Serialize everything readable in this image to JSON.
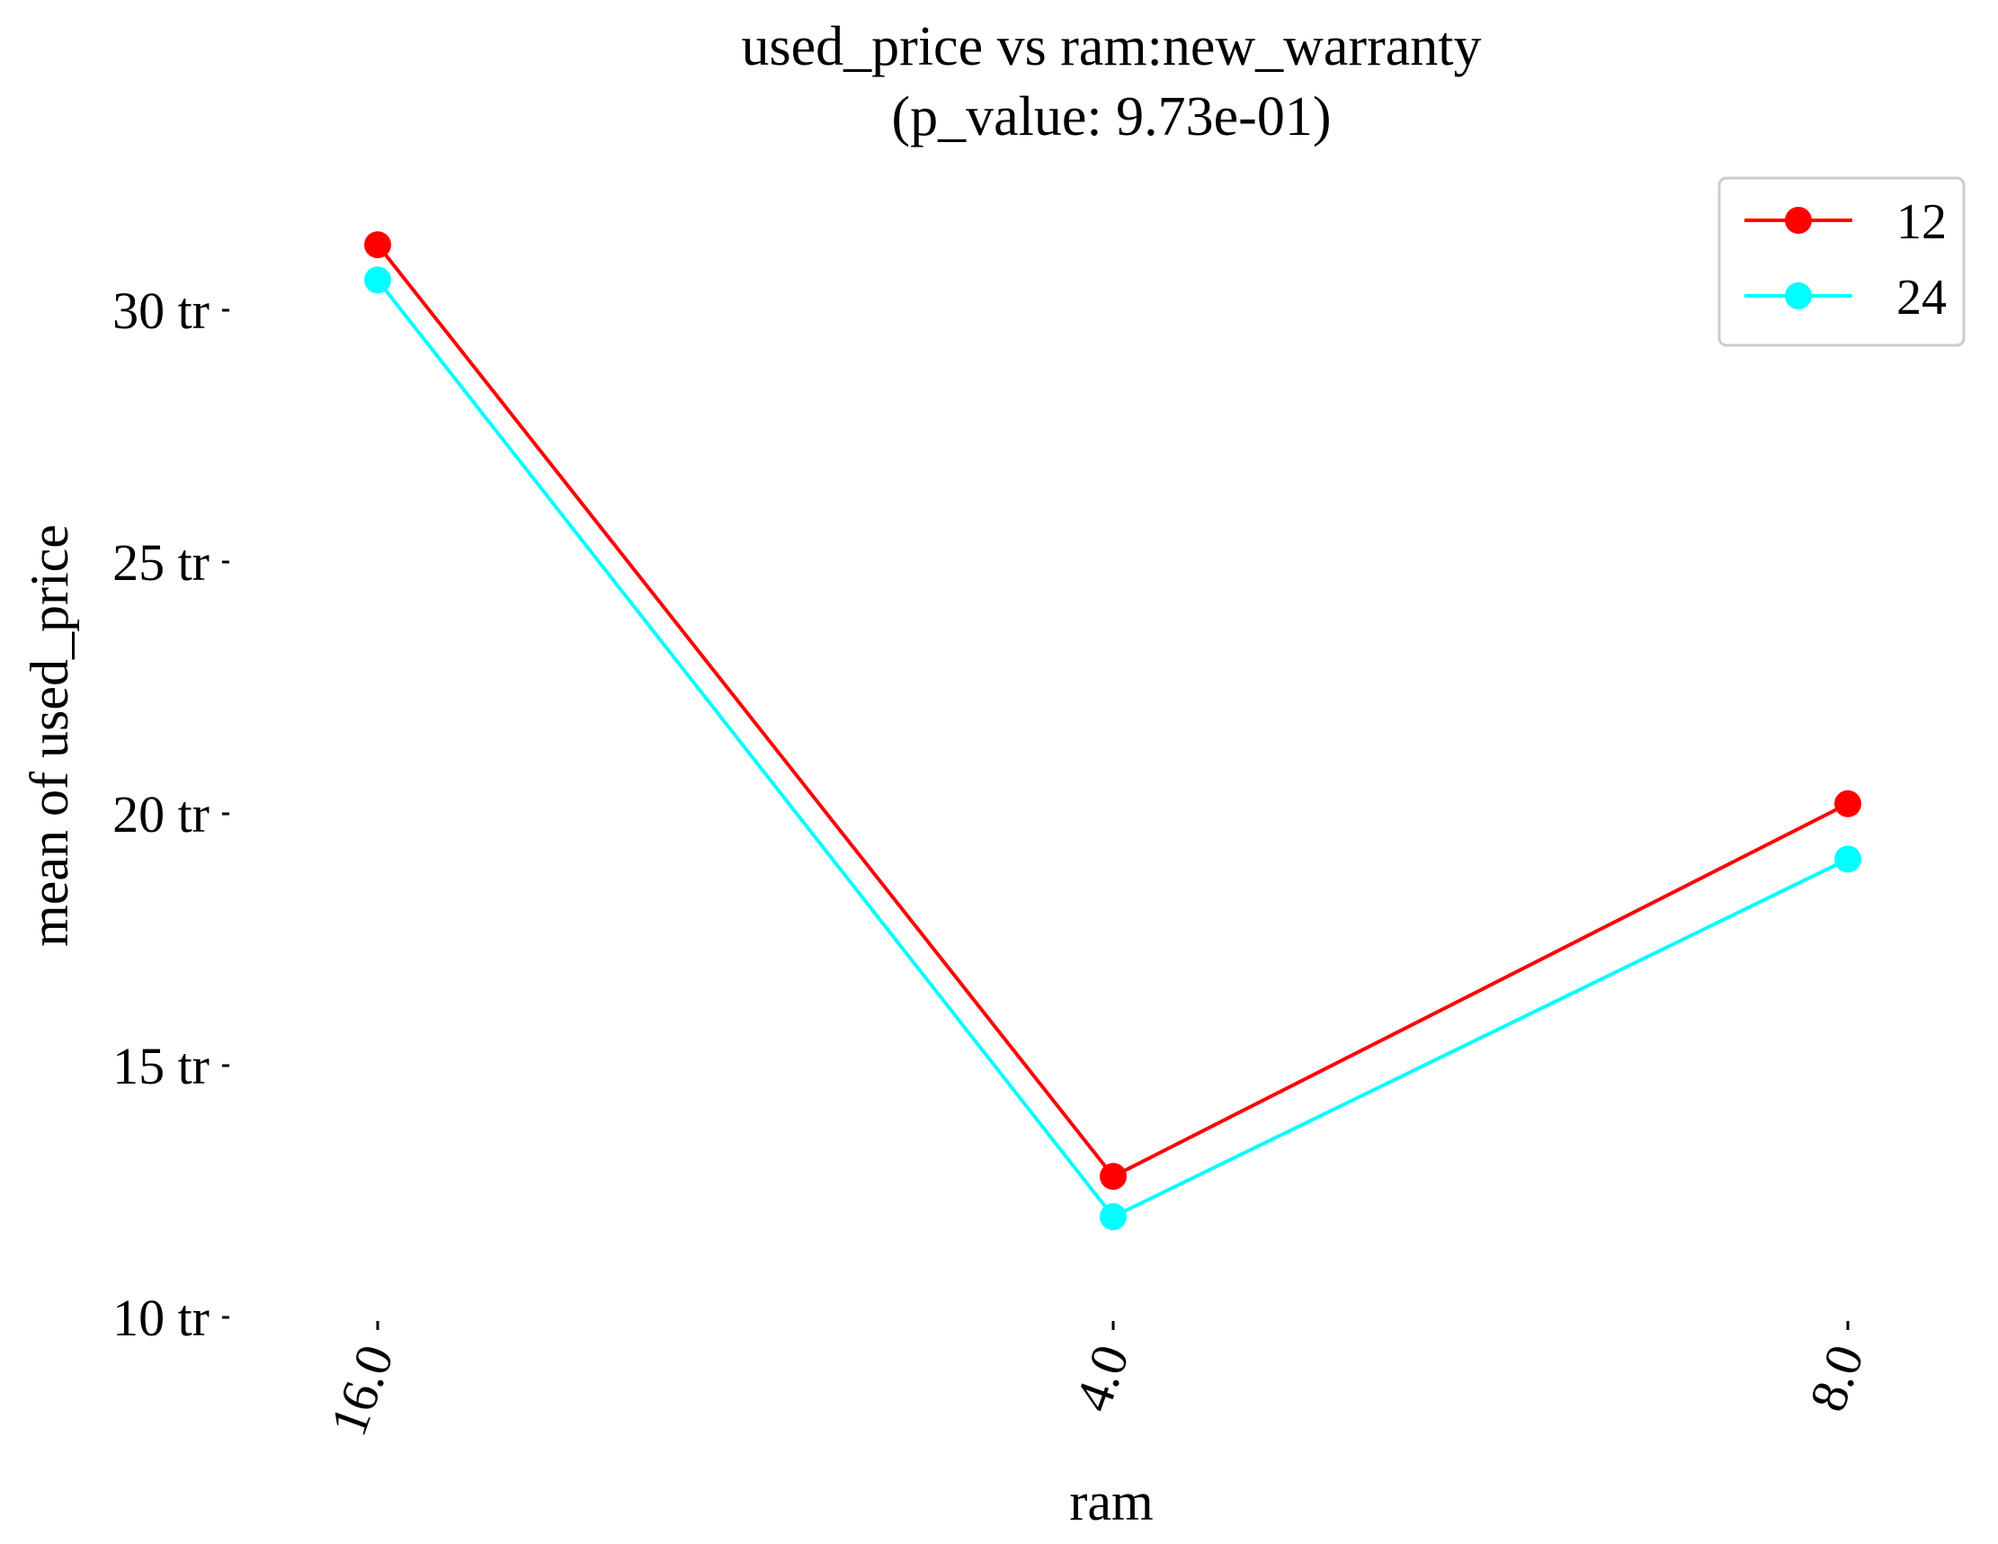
{
  "chart_data": {
    "type": "line",
    "title": "used_price vs ram:new_warranty",
    "subtitle": "(p_value: 9.73e-01)",
    "xlabel": "ram",
    "ylabel": "mean of used_price",
    "categories": [
      "16.0",
      "4.0",
      "8.0"
    ],
    "series": [
      {
        "name": "12",
        "color": "#ff0000",
        "values": [
          31.3,
          12.8,
          20.2
        ]
      },
      {
        "name": "24",
        "color": "#00ffff",
        "values": [
          30.6,
          12.0,
          19.1
        ]
      }
    ],
    "ylim": [
      10,
      32.5
    ],
    "yticks": [
      10,
      15,
      20,
      25,
      30
    ],
    "ytick_labels": [
      "10 tr",
      "15 tr",
      "20 tr",
      "25 tr",
      "30 tr"
    ],
    "grid": false,
    "legend_position": "top-right",
    "marker": "circle"
  }
}
